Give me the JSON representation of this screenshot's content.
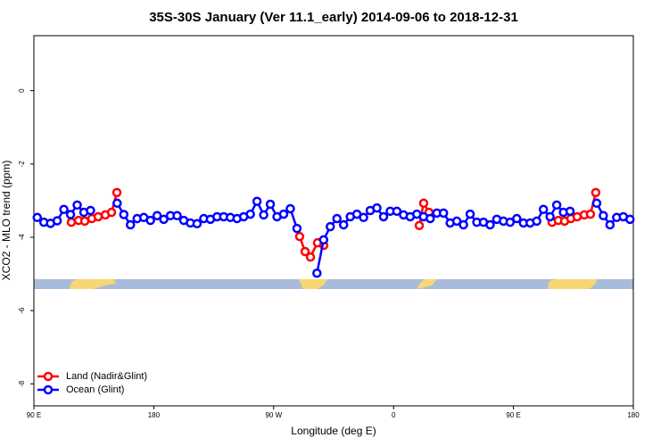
{
  "chart_data": {
    "type": "line",
    "title": "35S-30S January (Ver 11.1_early)   2014-09-06 to 2018-12-31",
    "xlabel": "Longitude (deg E)",
    "ylabel": "XCO2 - MLO trend (ppm)",
    "xlim": [
      90,
      540
    ],
    "xticks": [
      {
        "value": 90,
        "label": "90 E"
      },
      {
        "value": 180,
        "label": "180"
      },
      {
        "value": 270,
        "label": "90 W"
      },
      {
        "value": 360,
        "label": "0"
      },
      {
        "value": 450,
        "label": "90 E"
      },
      {
        "value": 540,
        "label": "180"
      }
    ],
    "ylim": [
      -8.6,
      1.5
    ],
    "yticks": [
      0,
      -2,
      -4,
      -6,
      -8
    ],
    "legend": "bottomleft",
    "series": [
      {
        "name": "Land (Nadir&Glint)",
        "color": "#ff0000",
        "x": [
          118.1,
          123.5,
          128.2,
          133.5,
          138.2,
          143.6,
          148.3,
          152.3,
          null,
          289.5,
          293.6,
          297.6,
          302.9,
          307.6,
          null,
          379.3,
          382.6,
          386.6,
          null,
          479,
          483.7,
          488.4,
          493.1,
          497.8,
          503.2,
          507.8,
          511.8
        ],
        "values": [
          -3.59,
          -3.54,
          -3.56,
          -3.49,
          -3.44,
          -3.39,
          -3.32,
          -2.78,
          null,
          -3.98,
          -4.39,
          -4.54,
          -4.15,
          -4.22,
          null,
          -3.68,
          -3.07,
          -3.32,
          null,
          -3.59,
          -3.54,
          -3.56,
          -3.49,
          -3.44,
          -3.39,
          -3.37,
          -2.78
        ]
      },
      {
        "name": "Ocean (Glint)",
        "color": "#0000ff",
        "x": [
          92.5,
          97.5,
          102.5,
          107.5,
          112.5,
          117.5,
          122.5,
          127.5,
          132.5,
          137.5,
          142.5,
          147.5,
          152.5,
          157.5,
          162.5,
          167.5,
          172.5,
          177.5,
          182.5,
          187.5,
          192.5,
          197.5,
          202.5,
          207.5,
          212.5,
          217.5,
          222.5,
          227.5,
          232.5,
          237.5,
          242.5,
          247.5,
          252.5,
          257.5,
          262.5,
          267.5,
          272.5,
          277.5,
          282.5,
          287.5,
          292.5,
          297.5,
          302.5,
          307.5,
          312.5,
          317.5,
          322.5,
          327.5,
          332.5,
          337.5,
          342.5,
          347.5,
          352.5,
          357.5,
          362.5,
          367.5,
          372.5,
          377.5,
          382.5,
          387.5,
          392.5,
          397.5,
          402.5,
          407.5,
          412.5,
          417.5,
          422.5,
          427.5,
          432.5,
          437.5,
          442.5,
          447.5,
          452.5,
          457.5,
          462.5,
          467.5,
          472.5,
          477.5,
          482.5,
          487.5,
          492.5,
          497.5,
          502.5,
          507.5,
          512.5,
          517.5,
          522.5,
          527.5,
          532.5,
          537.5
        ],
        "values": [
          -3.46,
          -3.59,
          -3.62,
          -3.55,
          -3.24,
          -3.38,
          -3.12,
          -3.32,
          -3.27,
          null,
          null,
          null,
          -3.07,
          -3.38,
          -3.66,
          -3.49,
          -3.46,
          -3.54,
          -3.41,
          -3.51,
          -3.41,
          -3.41,
          -3.54,
          -3.61,
          -3.63,
          -3.49,
          -3.51,
          -3.44,
          -3.44,
          -3.46,
          -3.49,
          -3.44,
          -3.37,
          -3.02,
          -3.39,
          -3.1,
          -3.44,
          -3.37,
          -3.22,
          -3.76,
          null,
          null,
          -4.98,
          -4.07,
          -3.71,
          -3.49,
          -3.66,
          -3.44,
          -3.37,
          -3.46,
          -3.27,
          -3.2,
          -3.44,
          -3.29,
          -3.29,
          -3.39,
          -3.44,
          -3.37,
          -3.44,
          -3.49,
          -3.34,
          -3.34,
          -3.61,
          -3.56,
          -3.66,
          -3.37,
          -3.59,
          -3.59,
          -3.66,
          -3.51,
          -3.56,
          -3.59,
          -3.49,
          -3.61,
          -3.61,
          -3.56,
          -3.24,
          -3.44,
          -3.12,
          -3.32,
          -3.29,
          null,
          null,
          null,
          -3.07,
          -3.41,
          -3.66,
          -3.46,
          -3.44,
          -3.51
        ]
      }
    ]
  }
}
